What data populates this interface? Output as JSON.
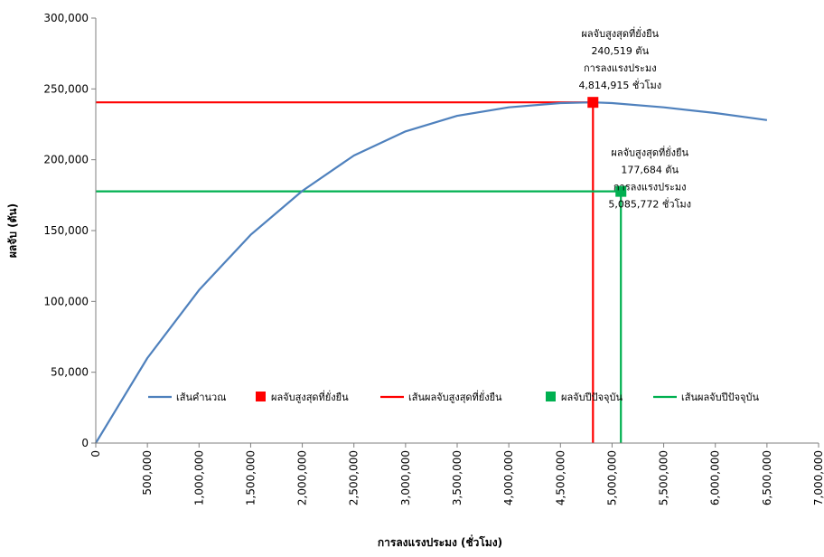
{
  "chart_data": {
    "type": "line",
    "xlabel": "การลงแรงประมง (ชั่วโมง)",
    "ylabel": "ผลจับ (ตัน)",
    "xlim": [
      0,
      7000000
    ],
    "ylim": [
      0,
      300000
    ],
    "x_ticks": [
      0,
      500000,
      1000000,
      1500000,
      2000000,
      2500000,
      3000000,
      3500000,
      4000000,
      4500000,
      5000000,
      5500000,
      6000000,
      6500000,
      7000000
    ],
    "x_tick_labels": [
      "0",
      "500,000",
      "1,000,000",
      "1,500,000",
      "2,000,000",
      "2,500,000",
      "3,000,000",
      "3,500,000",
      "4,000,000",
      "4,500,000",
      "5,000,000",
      "5,500,000",
      "6,000,000",
      "6,500,000",
      "7,000,000"
    ],
    "y_ticks": [
      0,
      50000,
      100000,
      150000,
      200000,
      250000,
      300000
    ],
    "y_tick_labels": [
      "0",
      "50,000",
      "100,000",
      "150,000",
      "200,000",
      "250,000",
      "300,000"
    ],
    "grid": false,
    "legend_position": "center",
    "series": [
      {
        "name": "เส้นคำนวณ",
        "kind": "line",
        "color": "#4f81bd",
        "x": [
          0,
          500000,
          1000000,
          1500000,
          2000000,
          2500000,
          3000000,
          3500000,
          4000000,
          4500000,
          4814915,
          5000000,
          5500000,
          6000000,
          6500000
        ],
        "y": [
          0,
          60000,
          108000,
          147000,
          178000,
          203000,
          220000,
          231000,
          237000,
          240000,
          240519,
          240000,
          237000,
          233000,
          228000
        ]
      },
      {
        "name": "ผลจับสูงสุดที่ยั่งยืน",
        "kind": "point",
        "color": "#ff0000",
        "x": [
          4814915
        ],
        "y": [
          240519
        ]
      },
      {
        "name": "เส้นผลจับสูงสุดที่ยั่งยืน",
        "kind": "guide",
        "color": "#ff0000",
        "x": [
          0,
          4814915,
          4814915
        ],
        "y": [
          240519,
          240519,
          0
        ]
      },
      {
        "name": "ผลจับปีปัจจุบัน",
        "kind": "point",
        "color": "#00b050",
        "x": [
          5085772
        ],
        "y": [
          177684
        ]
      },
      {
        "name": "เส้นผลจับปีปัจจุบัน",
        "kind": "guide",
        "color": "#00b050",
        "x": [
          0,
          5085772,
          5085772
        ],
        "y": [
          177684,
          177684,
          0
        ]
      }
    ],
    "annotations": [
      {
        "lines": [
          "ผลจับสูงสุดที่ยั่งยืน",
          "240,519 ตัน",
          "การลงแรงประมง",
          "4,814,915 ชั่วโมง"
        ],
        "x": 4814915,
        "y": 240519
      },
      {
        "lines": [
          "ผลจับสูงสุดที่ยั่งยืน",
          "177,684 ตัน",
          "การลงแรงประมง",
          "5,085,772 ชั่วโมง"
        ],
        "x": 5085772,
        "y": 177684
      }
    ]
  }
}
